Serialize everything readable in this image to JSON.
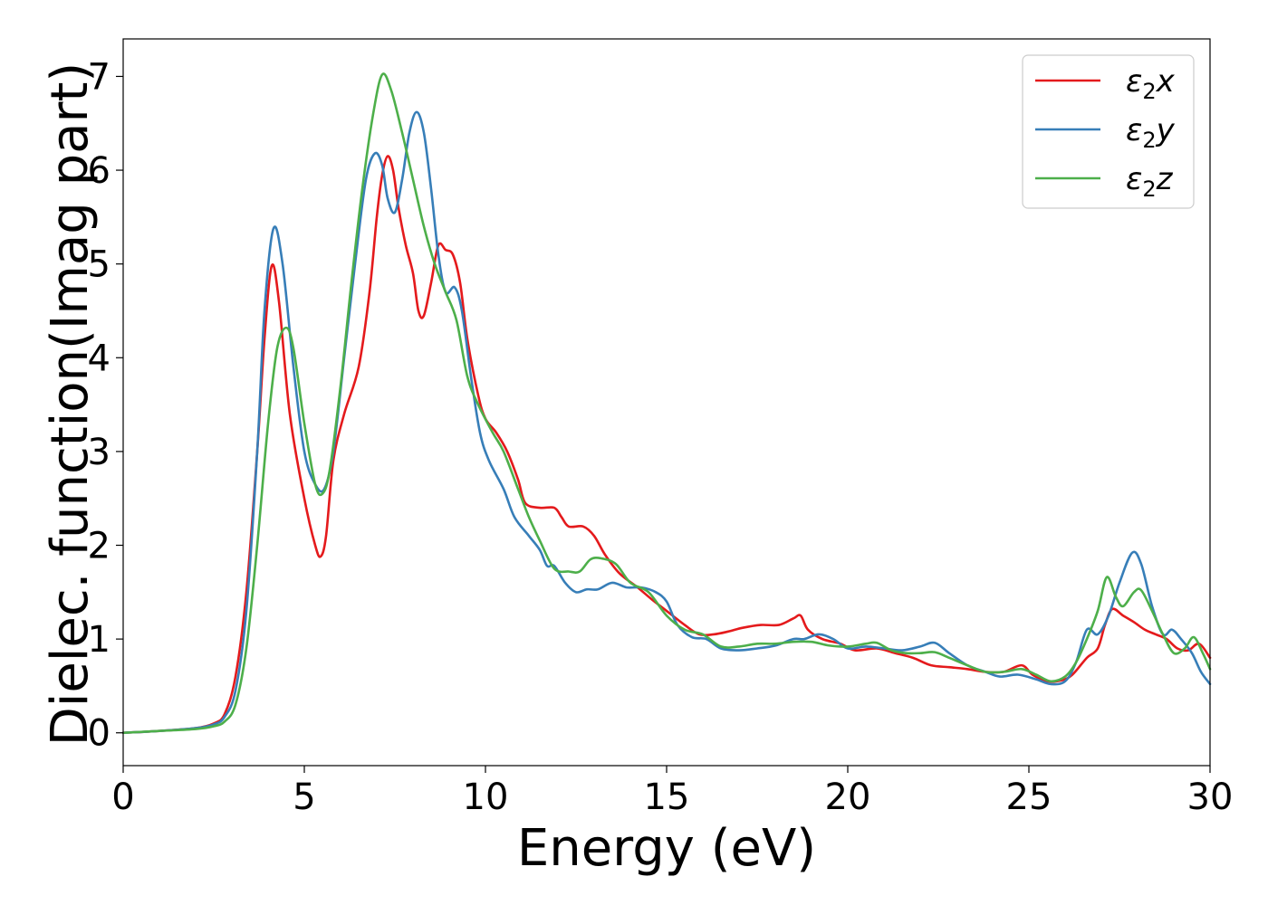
{
  "chart_data": {
    "type": "line",
    "xlabel": "Energy (eV)",
    "ylabel": "Dielec. function(Imag part)",
    "xlim": [
      0,
      30
    ],
    "ylim": [
      -0.35,
      7.4
    ],
    "xticks": [
      0,
      5,
      10,
      15,
      20,
      25,
      30
    ],
    "xtick_labels": [
      "0",
      "5",
      "10",
      "15",
      "20",
      "25",
      "30"
    ],
    "yticks": [
      0,
      1,
      2,
      3,
      4,
      5,
      6,
      7
    ],
    "ytick_labels": [
      "0",
      "1",
      "2",
      "3",
      "4",
      "5",
      "6",
      "7"
    ],
    "grid": false,
    "legend_position": "top-right",
    "series": [
      {
        "name": "ε₂x",
        "legend_base": "ε",
        "legend_sub": "2",
        "legend_suffix": "x",
        "color": "#e41a1c",
        "points": [
          [
            0,
            0
          ],
          [
            1,
            0.02
          ],
          [
            2,
            0.05
          ],
          [
            2.5,
            0.1
          ],
          [
            2.8,
            0.2
          ],
          [
            3.1,
            0.6
          ],
          [
            3.4,
            1.5
          ],
          [
            3.7,
            3.0
          ],
          [
            3.9,
            4.2
          ],
          [
            4.1,
            4.98
          ],
          [
            4.3,
            4.6
          ],
          [
            4.6,
            3.4
          ],
          [
            5.0,
            2.5
          ],
          [
            5.3,
            2.0
          ],
          [
            5.45,
            1.88
          ],
          [
            5.6,
            2.1
          ],
          [
            5.8,
            2.9
          ],
          [
            6.1,
            3.4
          ],
          [
            6.5,
            3.9
          ],
          [
            6.8,
            4.7
          ],
          [
            7.0,
            5.5
          ],
          [
            7.15,
            5.95
          ],
          [
            7.3,
            6.15
          ],
          [
            7.45,
            6.0
          ],
          [
            7.6,
            5.6
          ],
          [
            7.8,
            5.2
          ],
          [
            8.0,
            4.9
          ],
          [
            8.15,
            4.5
          ],
          [
            8.3,
            4.45
          ],
          [
            8.5,
            4.8
          ],
          [
            8.7,
            5.2
          ],
          [
            8.9,
            5.15
          ],
          [
            9.1,
            5.1
          ],
          [
            9.3,
            4.8
          ],
          [
            9.5,
            4.2
          ],
          [
            9.8,
            3.6
          ],
          [
            10.0,
            3.35
          ],
          [
            10.3,
            3.2
          ],
          [
            10.6,
            3.0
          ],
          [
            10.9,
            2.7
          ],
          [
            11.1,
            2.45
          ],
          [
            11.5,
            2.4
          ],
          [
            11.9,
            2.4
          ],
          [
            12.1,
            2.3
          ],
          [
            12.3,
            2.2
          ],
          [
            12.7,
            2.2
          ],
          [
            13.0,
            2.1
          ],
          [
            13.3,
            1.9
          ],
          [
            13.7,
            1.7
          ],
          [
            14.2,
            1.55
          ],
          [
            14.6,
            1.42
          ],
          [
            15.0,
            1.3
          ],
          [
            15.5,
            1.15
          ],
          [
            15.9,
            1.05
          ],
          [
            16.3,
            1.05
          ],
          [
            16.7,
            1.08
          ],
          [
            17.1,
            1.12
          ],
          [
            17.6,
            1.15
          ],
          [
            18.1,
            1.15
          ],
          [
            18.5,
            1.22
          ],
          [
            18.7,
            1.25
          ],
          [
            18.9,
            1.1
          ],
          [
            19.3,
            1.0
          ],
          [
            19.8,
            0.95
          ],
          [
            20.2,
            0.88
          ],
          [
            20.8,
            0.9
          ],
          [
            21.3,
            0.85
          ],
          [
            21.8,
            0.8
          ],
          [
            22.3,
            0.72
          ],
          [
            22.8,
            0.7
          ],
          [
            23.3,
            0.68
          ],
          [
            23.8,
            0.65
          ],
          [
            24.3,
            0.65
          ],
          [
            24.8,
            0.72
          ],
          [
            25.1,
            0.62
          ],
          [
            25.5,
            0.55
          ],
          [
            25.9,
            0.56
          ],
          [
            26.2,
            0.62
          ],
          [
            26.6,
            0.8
          ],
          [
            26.9,
            0.9
          ],
          [
            27.1,
            1.15
          ],
          [
            27.3,
            1.32
          ],
          [
            27.6,
            1.25
          ],
          [
            27.9,
            1.18
          ],
          [
            28.2,
            1.1
          ],
          [
            28.5,
            1.05
          ],
          [
            28.8,
            1.0
          ],
          [
            29.1,
            0.9
          ],
          [
            29.4,
            0.88
          ],
          [
            29.7,
            0.95
          ],
          [
            30.0,
            0.8
          ]
        ]
      },
      {
        "name": "ε₂y",
        "legend_base": "ε",
        "legend_sub": "2",
        "legend_suffix": "y",
        "color": "#377eb8",
        "points": [
          [
            0,
            0
          ],
          [
            1,
            0.02
          ],
          [
            2,
            0.05
          ],
          [
            2.5,
            0.09
          ],
          [
            2.8,
            0.17
          ],
          [
            3.1,
            0.45
          ],
          [
            3.4,
            1.3
          ],
          [
            3.7,
            3.0
          ],
          [
            3.9,
            4.5
          ],
          [
            4.15,
            5.38
          ],
          [
            4.4,
            5.0
          ],
          [
            4.7,
            3.9
          ],
          [
            5.0,
            3.0
          ],
          [
            5.3,
            2.65
          ],
          [
            5.55,
            2.6
          ],
          [
            5.8,
            3.0
          ],
          [
            6.1,
            4.0
          ],
          [
            6.4,
            5.0
          ],
          [
            6.7,
            5.9
          ],
          [
            6.95,
            6.18
          ],
          [
            7.15,
            6.05
          ],
          [
            7.3,
            5.7
          ],
          [
            7.5,
            5.55
          ],
          [
            7.7,
            5.9
          ],
          [
            7.9,
            6.4
          ],
          [
            8.1,
            6.62
          ],
          [
            8.3,
            6.4
          ],
          [
            8.5,
            5.8
          ],
          [
            8.7,
            5.1
          ],
          [
            8.9,
            4.7
          ],
          [
            9.15,
            4.75
          ],
          [
            9.35,
            4.5
          ],
          [
            9.6,
            3.8
          ],
          [
            9.85,
            3.2
          ],
          [
            10.1,
            2.9
          ],
          [
            10.5,
            2.6
          ],
          [
            10.8,
            2.3
          ],
          [
            11.2,
            2.1
          ],
          [
            11.5,
            1.95
          ],
          [
            11.7,
            1.78
          ],
          [
            11.9,
            1.78
          ],
          [
            12.2,
            1.6
          ],
          [
            12.5,
            1.5
          ],
          [
            12.8,
            1.53
          ],
          [
            13.1,
            1.53
          ],
          [
            13.5,
            1.6
          ],
          [
            13.9,
            1.55
          ],
          [
            14.3,
            1.55
          ],
          [
            14.7,
            1.5
          ],
          [
            15.0,
            1.4
          ],
          [
            15.3,
            1.15
          ],
          [
            15.7,
            1.02
          ],
          [
            16.1,
            1.0
          ],
          [
            16.5,
            0.9
          ],
          [
            17.0,
            0.88
          ],
          [
            17.5,
            0.9
          ],
          [
            18.0,
            0.93
          ],
          [
            18.5,
            1.0
          ],
          [
            18.8,
            1.0
          ],
          [
            19.2,
            1.05
          ],
          [
            19.6,
            1.0
          ],
          [
            20.0,
            0.9
          ],
          [
            20.5,
            0.92
          ],
          [
            21.0,
            0.9
          ],
          [
            21.5,
            0.88
          ],
          [
            22.0,
            0.92
          ],
          [
            22.4,
            0.96
          ],
          [
            22.8,
            0.85
          ],
          [
            23.3,
            0.72
          ],
          [
            23.8,
            0.65
          ],
          [
            24.2,
            0.6
          ],
          [
            24.7,
            0.62
          ],
          [
            25.2,
            0.57
          ],
          [
            25.6,
            0.52
          ],
          [
            26.0,
            0.55
          ],
          [
            26.3,
            0.75
          ],
          [
            26.6,
            1.1
          ],
          [
            26.9,
            1.05
          ],
          [
            27.2,
            1.25
          ],
          [
            27.5,
            1.6
          ],
          [
            27.85,
            1.92
          ],
          [
            28.1,
            1.8
          ],
          [
            28.4,
            1.35
          ],
          [
            28.7,
            1.05
          ],
          [
            28.95,
            1.1
          ],
          [
            29.2,
            1.0
          ],
          [
            29.5,
            0.85
          ],
          [
            29.75,
            0.65
          ],
          [
            30.0,
            0.52
          ]
        ]
      },
      {
        "name": "ε₂z",
        "legend_base": "ε",
        "legend_sub": "2",
        "legend_suffix": "z",
        "color": "#4daf4a",
        "points": [
          [
            0,
            0
          ],
          [
            1,
            0.02
          ],
          [
            2,
            0.04
          ],
          [
            2.5,
            0.07
          ],
          [
            2.8,
            0.12
          ],
          [
            3.1,
            0.3
          ],
          [
            3.4,
            0.9
          ],
          [
            3.7,
            2.0
          ],
          [
            4.0,
            3.3
          ],
          [
            4.25,
            4.1
          ],
          [
            4.5,
            4.32
          ],
          [
            4.7,
            4.1
          ],
          [
            5.0,
            3.3
          ],
          [
            5.3,
            2.65
          ],
          [
            5.5,
            2.55
          ],
          [
            5.7,
            2.8
          ],
          [
            6.0,
            3.7
          ],
          [
            6.3,
            4.8
          ],
          [
            6.6,
            5.8
          ],
          [
            6.9,
            6.6
          ],
          [
            7.15,
            7.02
          ],
          [
            7.4,
            6.85
          ],
          [
            7.7,
            6.4
          ],
          [
            8.0,
            5.9
          ],
          [
            8.3,
            5.4
          ],
          [
            8.6,
            5.0
          ],
          [
            8.9,
            4.7
          ],
          [
            9.2,
            4.4
          ],
          [
            9.5,
            3.8
          ],
          [
            9.8,
            3.5
          ],
          [
            10.2,
            3.2
          ],
          [
            10.5,
            3.0
          ],
          [
            10.9,
            2.6
          ],
          [
            11.2,
            2.3
          ],
          [
            11.5,
            2.05
          ],
          [
            11.9,
            1.75
          ],
          [
            12.3,
            1.72
          ],
          [
            12.6,
            1.72
          ],
          [
            12.9,
            1.85
          ],
          [
            13.2,
            1.86
          ],
          [
            13.6,
            1.8
          ],
          [
            14.0,
            1.6
          ],
          [
            14.5,
            1.5
          ],
          [
            15.0,
            1.25
          ],
          [
            15.5,
            1.1
          ],
          [
            16.0,
            1.05
          ],
          [
            16.5,
            0.92
          ],
          [
            17.0,
            0.92
          ],
          [
            17.5,
            0.95
          ],
          [
            18.0,
            0.95
          ],
          [
            18.5,
            0.97
          ],
          [
            19.0,
            0.97
          ],
          [
            19.5,
            0.93
          ],
          [
            20.0,
            0.92
          ],
          [
            20.5,
            0.95
          ],
          [
            20.8,
            0.96
          ],
          [
            21.2,
            0.88
          ],
          [
            21.6,
            0.85
          ],
          [
            22.0,
            0.85
          ],
          [
            22.4,
            0.86
          ],
          [
            22.8,
            0.8
          ],
          [
            23.3,
            0.72
          ],
          [
            23.8,
            0.65
          ],
          [
            24.3,
            0.65
          ],
          [
            24.8,
            0.68
          ],
          [
            25.2,
            0.62
          ],
          [
            25.6,
            0.55
          ],
          [
            26.0,
            0.6
          ],
          [
            26.3,
            0.75
          ],
          [
            26.6,
            1.0
          ],
          [
            26.9,
            1.3
          ],
          [
            27.15,
            1.66
          ],
          [
            27.4,
            1.45
          ],
          [
            27.6,
            1.35
          ],
          [
            27.9,
            1.5
          ],
          [
            28.1,
            1.52
          ],
          [
            28.4,
            1.3
          ],
          [
            28.7,
            1.05
          ],
          [
            29.0,
            0.85
          ],
          [
            29.3,
            0.9
          ],
          [
            29.55,
            1.02
          ],
          [
            29.8,
            0.85
          ],
          [
            30.0,
            0.68
          ]
        ]
      }
    ]
  }
}
